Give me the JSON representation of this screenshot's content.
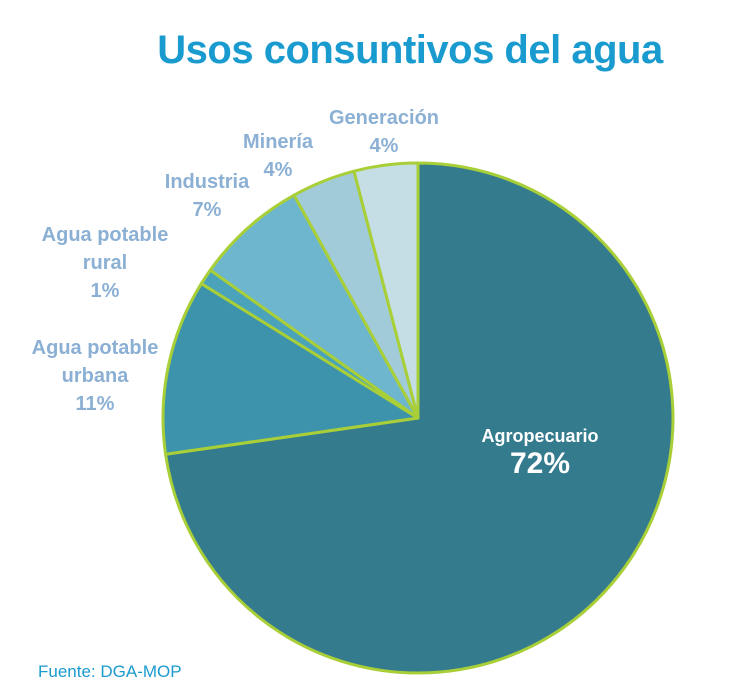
{
  "chart_data": {
    "type": "pie",
    "title": "Usos consuntivos del agua",
    "source": "Fuente: DGA-MOP",
    "slices": [
      {
        "label_lines": [
          "Agropecuario"
        ],
        "value_label": "72%",
        "value": 72,
        "color": "#357b8e",
        "label_color": "#ffffff"
      },
      {
        "label_lines": [
          "Agua potable",
          "urbana"
        ],
        "value_label": "11%",
        "value": 11,
        "color": "#3d93ab",
        "label_color": "#8bb0d4"
      },
      {
        "label_lines": [
          "Agua potable",
          "rural"
        ],
        "value_label": "1%",
        "value": 1,
        "color": "#4ba3bb",
        "label_color": "#8bb0d4"
      },
      {
        "label_lines": [
          "Industria"
        ],
        "value_label": "7%",
        "value": 7,
        "color": "#6eb6cd",
        "label_color": "#8bb0d4"
      },
      {
        "label_lines": [
          "Minería"
        ],
        "value_label": "4%",
        "value": 4,
        "color": "#a2cbda",
        "label_color": "#8bb0d4"
      },
      {
        "label_lines": [
          "Generación"
        ],
        "value_label": "4%",
        "value": 4,
        "color": "#c5dee6",
        "label_color": "#8bb0d4"
      }
    ],
    "slice_border_color": "#a9cf38",
    "title_color": "#1a9bcf"
  }
}
